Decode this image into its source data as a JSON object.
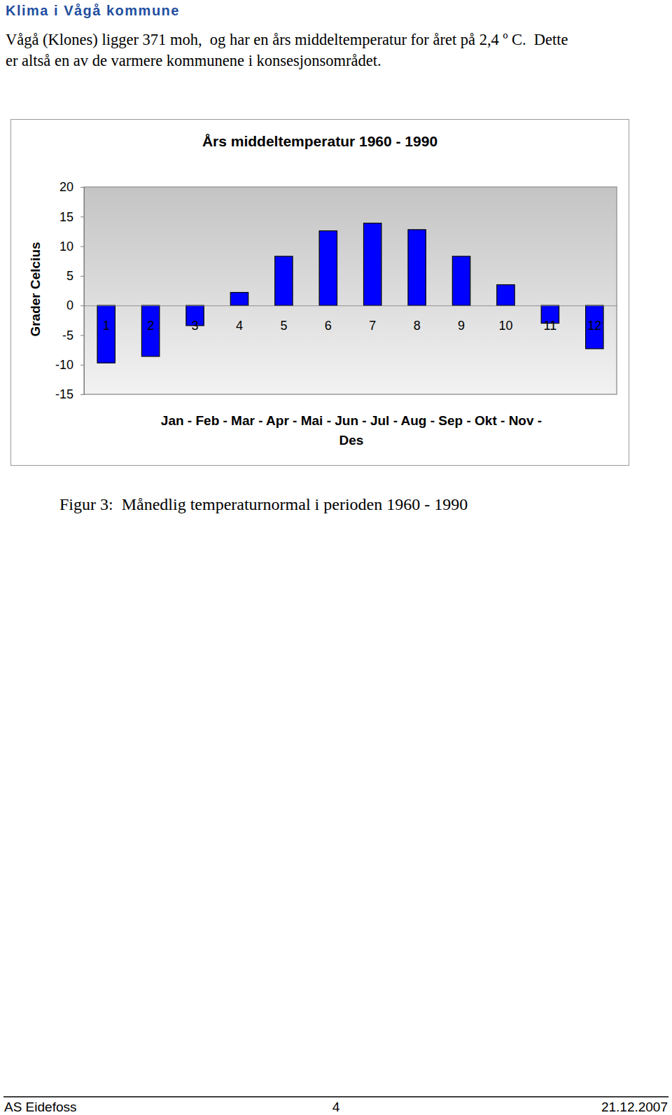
{
  "header": "Klima i Vågå kommune",
  "paragraph_lines": [
    "Vågå (Klones) ligger 371 moh,  og har en års middeltemperatur for året på 2,4 º C.  Dette",
    "er altså en av de varmere kommunene i konsesjonsområdet."
  ],
  "chart_data": {
    "type": "bar",
    "title": "Års middeltemperatur 1960 - 1990",
    "x_label": "Jan - Feb - Mar - Apr - Mai - Jun - Jul - Aug - Sep - Okt - Nov - Des",
    "y_label": "Grader Celcius",
    "categories": [
      "1",
      "2",
      "3",
      "4",
      "5",
      "6",
      "7",
      "8",
      "9",
      "10",
      "11",
      "12"
    ],
    "values": [
      -9.7,
      -8.6,
      -3.4,
      2.2,
      8.3,
      12.6,
      13.9,
      12.8,
      8.3,
      3.5,
      -3.0,
      -7.3
    ],
    "color": "#0000ff",
    "ylim": [
      -15,
      20
    ],
    "yticks": [
      -15,
      -10,
      -5,
      0,
      5,
      10,
      15,
      20
    ],
    "grid": false
  },
  "caption": "Figur 3:  Månedlig temperaturnormal i perioden 1960 - 1990",
  "footer": {
    "left": "AS Eidefoss",
    "center": "4",
    "right": "21.12.2007"
  }
}
